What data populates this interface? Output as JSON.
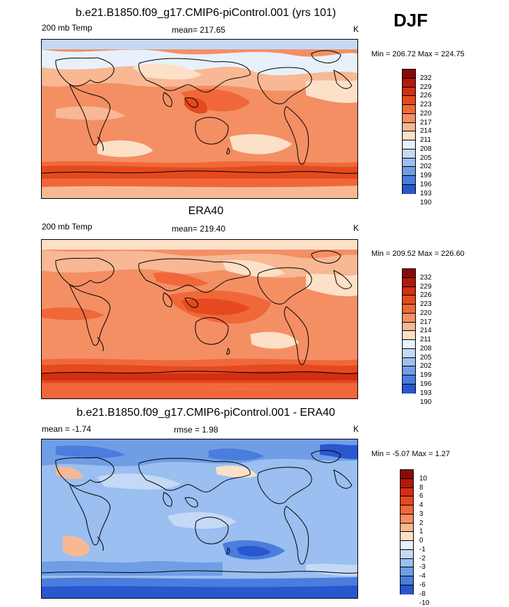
{
  "season": "DJF",
  "panels": [
    {
      "title": "b.e21.B1850.f09_g17.CMIP6-piControl.001 (yrs 101)",
      "left_label": "200 mb Temp",
      "center_label": "mean= 217.65",
      "units": "K",
      "minmax": "Min = 206.72 Max = 224.75",
      "colorbar": {
        "labels": [
          "232",
          "229",
          "226",
          "223",
          "220",
          "217",
          "214",
          "211",
          "208",
          "205",
          "202",
          "199",
          "196",
          "193",
          "190"
        ],
        "colors": [
          "#8b0a06",
          "#b31a0c",
          "#d42e13",
          "#e54a1e",
          "#f0683a",
          "#f48f64",
          "#f8b894",
          "#fde0c8",
          "#e8f1fb",
          "#c4d9f6",
          "#9abff0",
          "#6f9ee6",
          "#4a7ddc",
          "#2957cf",
          "#0a32b8",
          "#001a80"
        ]
      }
    },
    {
      "title": "ERA40",
      "left_label": "200 mb Temp",
      "center_label": "mean= 219.40",
      "units": "K",
      "minmax": "Min = 209.52 Max = 226.60",
      "colorbar": {
        "labels": [
          "232",
          "229",
          "226",
          "223",
          "220",
          "217",
          "214",
          "211",
          "208",
          "205",
          "202",
          "199",
          "196",
          "193",
          "190"
        ],
        "colors": [
          "#8b0a06",
          "#b31a0c",
          "#d42e13",
          "#e54a1e",
          "#f0683a",
          "#f48f64",
          "#f8b894",
          "#fde0c8",
          "#e8f1fb",
          "#c4d9f6",
          "#9abff0",
          "#6f9ee6",
          "#4a7ddc",
          "#2957cf",
          "#0a32b8",
          "#001a80"
        ]
      }
    },
    {
      "title": "b.e21.B1850.f09_g17.CMIP6-piControl.001 - ERA40",
      "left_label": "mean =  -1.74",
      "center_label": "rmse =   1.98",
      "units": "K",
      "minmax": "Min =  -5.07 Max =   1.27",
      "colorbar": {
        "labels": [
          "10",
          "8",
          "6",
          "4",
          "3",
          "2",
          "1",
          "0",
          "-1",
          "-2",
          "-3",
          "-4",
          "-6",
          "-8",
          "-10"
        ],
        "colors": [
          "#8b0a06",
          "#b31a0c",
          "#d42e13",
          "#e54a1e",
          "#f0683a",
          "#f48f64",
          "#f8b894",
          "#fde0c8",
          "#e8f1fb",
          "#c4d9f6",
          "#9abff0",
          "#6f9ee6",
          "#4a7ddc",
          "#2957cf",
          "#0a32b8",
          "#001a80"
        ]
      }
    }
  ]
}
